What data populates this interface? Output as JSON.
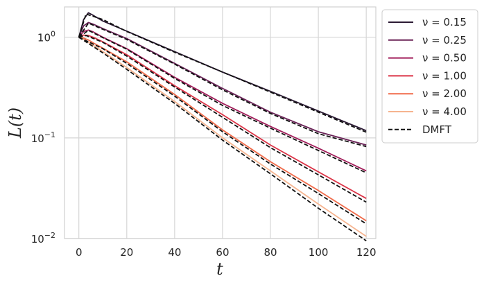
{
  "chart_data": {
    "type": "line",
    "xlabel": "t",
    "ylabel": "L(t)",
    "xlim": [
      -6,
      124
    ],
    "ylim": [
      0.01,
      2.0
    ],
    "yscale": "log",
    "xticks": [
      0,
      20,
      40,
      60,
      80,
      100,
      120
    ],
    "yticks": [
      {
        "value": 1,
        "base": "10",
        "exp": "0"
      },
      {
        "value": 0.1,
        "base": "10",
        "exp": "−1"
      },
      {
        "value": 0.01,
        "base": "10",
        "exp": "−2"
      }
    ],
    "grid": true,
    "legend_position": "outside-top-right",
    "series": [
      {
        "name": "ν = 0.15",
        "color": "#2b1a34",
        "style": "solid",
        "x": [
          0,
          2,
          4,
          6,
          10,
          20,
          40,
          60,
          80,
          100,
          120
        ],
        "y": [
          1.0,
          1.5,
          1.75,
          1.65,
          1.45,
          1.15,
          0.72,
          0.45,
          0.29,
          0.185,
          0.118
        ]
      },
      {
        "name": "ν = 0.25",
        "color": "#6a2257",
        "style": "solid",
        "x": [
          0,
          2,
          4,
          6,
          10,
          20,
          40,
          60,
          80,
          100,
          120
        ],
        "y": [
          1.0,
          1.3,
          1.4,
          1.35,
          1.22,
          0.97,
          0.55,
          0.31,
          0.18,
          0.115,
          0.085
        ]
      },
      {
        "name": "ν = 0.50",
        "color": "#a11d5a",
        "style": "solid",
        "x": [
          0,
          2,
          4,
          6,
          10,
          20,
          40,
          60,
          80,
          100,
          120
        ],
        "y": [
          1.0,
          1.14,
          1.18,
          1.13,
          1.0,
          0.77,
          0.4,
          0.22,
          0.13,
          0.079,
          0.047
        ]
      },
      {
        "name": "ν = 1.00",
        "color": "#db3346",
        "style": "solid",
        "x": [
          0,
          2,
          4,
          6,
          10,
          20,
          40,
          60,
          80,
          100,
          120
        ],
        "y": [
          1.0,
          1.05,
          1.04,
          1.0,
          0.9,
          0.67,
          0.33,
          0.17,
          0.085,
          0.046,
          0.025
        ]
      },
      {
        "name": "ν = 2.00",
        "color": "#f06b4a",
        "style": "solid",
        "x": [
          0,
          2,
          4,
          6,
          10,
          20,
          40,
          60,
          80,
          100,
          120
        ],
        "y": [
          1.0,
          0.98,
          0.94,
          0.88,
          0.78,
          0.57,
          0.27,
          0.12,
          0.058,
          0.03,
          0.015
        ]
      },
      {
        "name": "ν = 4.00",
        "color": "#f6b48f",
        "style": "solid",
        "x": [
          0,
          2,
          4,
          6,
          10,
          20,
          40,
          60,
          80,
          100,
          120
        ],
        "y": [
          1.0,
          0.95,
          0.89,
          0.83,
          0.72,
          0.5,
          0.23,
          0.1,
          0.047,
          0.022,
          0.0105
        ]
      },
      {
        "name": "DMFT",
        "color": "#111111",
        "style": "dashed",
        "segments": [
          {
            "x": [
              0,
              3,
              10,
              20,
              40,
              60,
              80,
              100,
              120
            ],
            "y": [
              1.0,
              1.7,
              1.5,
              1.14,
              0.71,
              0.45,
              0.285,
              0.18,
              0.114
            ]
          },
          {
            "x": [
              0,
              4,
              10,
              20,
              40,
              60,
              80,
              100,
              120
            ],
            "y": [
              1.0,
              1.38,
              1.2,
              0.95,
              0.54,
              0.3,
              0.175,
              0.11,
              0.082
            ]
          },
          {
            "x": [
              0,
              4,
              10,
              20,
              40,
              60,
              80,
              100,
              120
            ],
            "y": [
              1.0,
              1.17,
              0.99,
              0.76,
              0.39,
              0.21,
              0.125,
              0.075,
              0.045
            ]
          },
          {
            "x": [
              0,
              3,
              10,
              20,
              40,
              60,
              80,
              100,
              120
            ],
            "y": [
              1.0,
              1.04,
              0.89,
              0.65,
              0.32,
              0.16,
              0.08,
              0.043,
              0.023
            ]
          },
          {
            "x": [
              0,
              10,
              20,
              40,
              60,
              80,
              100,
              120
            ],
            "y": [
              1.0,
              0.77,
              0.55,
              0.26,
              0.115,
              0.055,
              0.028,
              0.014
            ]
          },
          {
            "x": [
              0,
              10,
              20,
              40,
              60,
              80,
              100,
              120
            ],
            "y": [
              1.0,
              0.7,
              0.48,
              0.22,
              0.095,
              0.044,
              0.02,
              0.0095
            ]
          }
        ]
      }
    ]
  }
}
